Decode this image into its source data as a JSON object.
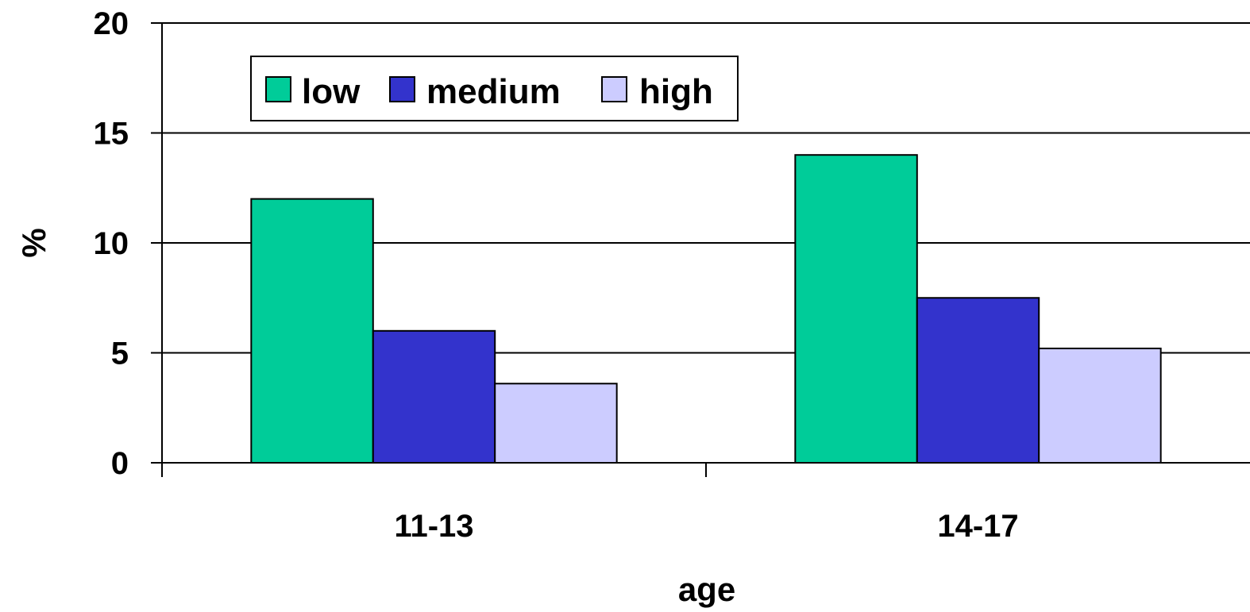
{
  "chart_data": {
    "type": "bar",
    "categories": [
      "11-13",
      "14-17"
    ],
    "series": [
      {
        "name": "low",
        "values": [
          12,
          14
        ],
        "color": "#00CC99"
      },
      {
        "name": "medium",
        "values": [
          6,
          7.5
        ],
        "color": "#3333CC"
      },
      {
        "name": "high",
        "values": [
          3.6,
          5.2
        ],
        "color": "#CCCCFF"
      }
    ],
    "xlabel": "age",
    "ylabel": "%",
    "ylim": [
      0,
      20
    ],
    "yticks": [
      0,
      5,
      10,
      15,
      20
    ],
    "grid": true,
    "legend_position": "top-left"
  }
}
